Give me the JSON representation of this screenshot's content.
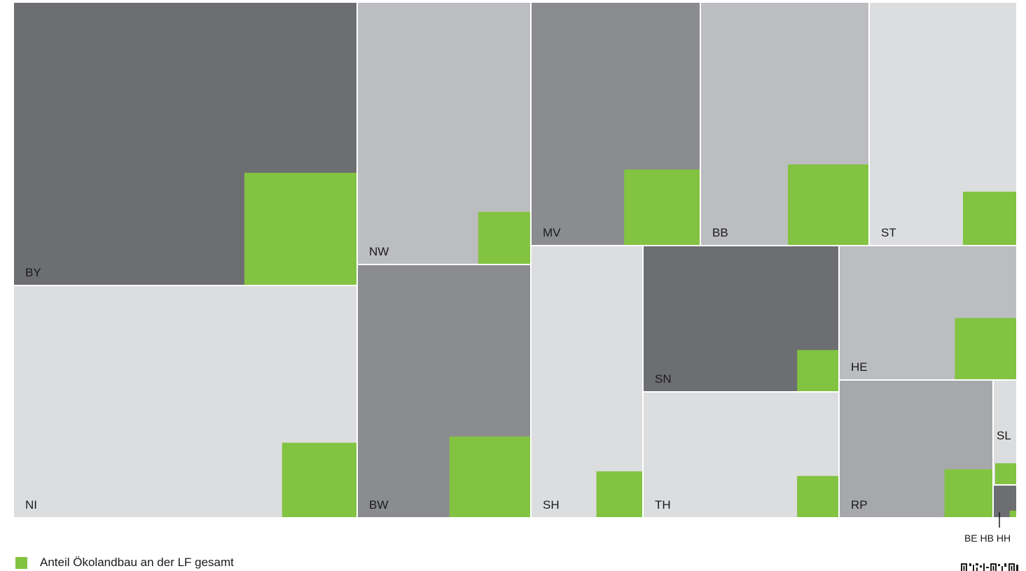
{
  "chart_data": {
    "type": "treemap",
    "title": "",
    "legend": {
      "label": "Anteil Ökolandbau an der LF gesamt",
      "color": "#82c341",
      "position": "bottom-left"
    },
    "eco_color": "#82c341",
    "shade_colors": {
      "dark": "#6d6e71",
      "medium": "#8b8c8f",
      "light": "#bcbdc0",
      "pale": "#dcdddf",
      "mid": "#a7a8ab"
    },
    "items": [
      {
        "id": "BY",
        "label": "BY",
        "shade": "dark",
        "total_share": 0.197,
        "eco_share": 0.13
      },
      {
        "id": "NI",
        "label": "NI",
        "shade": "pale",
        "total_share": 0.162,
        "eco_share": 0.07
      },
      {
        "id": "NW",
        "label": "NW",
        "shade": "light",
        "total_share": 0.091,
        "eco_share": 0.06
      },
      {
        "id": "BW",
        "label": "BW",
        "shade": "medium",
        "total_share": 0.087,
        "eco_share": 0.15
      },
      {
        "id": "MV",
        "label": "MV",
        "shade": "medium",
        "total_share": 0.084,
        "eco_share": 0.14
      },
      {
        "id": "BB",
        "label": "BB",
        "shade": "light",
        "total_share": 0.082,
        "eco_share": 0.16
      },
      {
        "id": "ST",
        "label": "ST",
        "shade": "pale",
        "total_share": 0.073,
        "eco_share": 0.08
      },
      {
        "id": "SH",
        "label": "SH",
        "shade": "pale",
        "total_share": 0.061,
        "eco_share": 0.07
      },
      {
        "id": "SN",
        "label": "SN",
        "shade": "dark",
        "total_share": 0.058,
        "eco_share": 0.06
      },
      {
        "id": "TH",
        "label": "TH",
        "shade": "pale",
        "total_share": 0.048,
        "eco_share": 0.07
      },
      {
        "id": "HE",
        "label": "HE",
        "shade": "light",
        "total_share": 0.046,
        "eco_share": 0.16
      },
      {
        "id": "RP",
        "label": "RP",
        "shade": "mid",
        "total_share": 0.043,
        "eco_share": 0.11
      },
      {
        "id": "SL",
        "label": "SL",
        "shade": "pale",
        "total_share": 0.004,
        "eco_share": 0.19
      },
      {
        "id": "BEHBHH",
        "label": "",
        "shade": "dark",
        "total_share": 0.002,
        "eco_share": 0.06
      }
    ],
    "annotation": "BE HB HH"
  }
}
